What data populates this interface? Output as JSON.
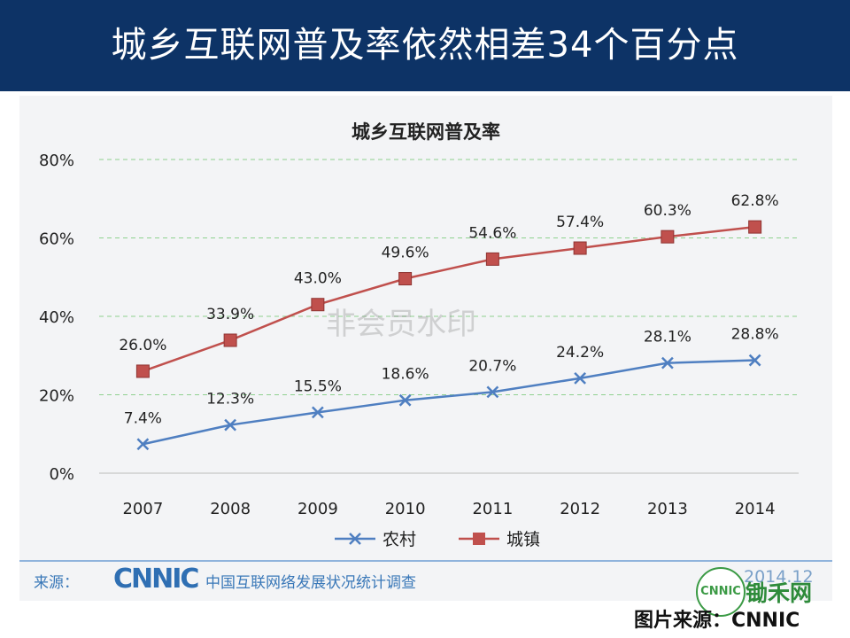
{
  "slide": {
    "title": "城乡互联网普及率依然相差34个百分点"
  },
  "chart_data": {
    "type": "line",
    "title": "城乡互联网普及率",
    "categories": [
      "2007",
      "2008",
      "2009",
      "2010",
      "2011",
      "2012",
      "2013",
      "2014"
    ],
    "series": [
      {
        "name": "农村",
        "values": [
          7.4,
          12.3,
          15.5,
          18.6,
          20.7,
          24.2,
          28.1,
          28.8
        ],
        "labels": [
          "7.4%",
          "12.3%",
          "15.5%",
          "18.6%",
          "20.7%",
          "24.2%",
          "28.1%",
          "28.8%"
        ],
        "color": "#4f7fc1",
        "marker": "x"
      },
      {
        "name": "城镇",
        "values": [
          26.0,
          33.9,
          43.0,
          49.6,
          54.6,
          57.4,
          60.3,
          62.8
        ],
        "labels": [
          "26.0%",
          "33.9%",
          "43.0%",
          "49.6%",
          "54.6%",
          "57.4%",
          "60.3%",
          "62.8%"
        ],
        "color": "#c0504d",
        "marker": "square"
      }
    ],
    "ylim": [
      0,
      80
    ],
    "yticks": [
      "0%",
      "20%",
      "40%",
      "60%",
      "80%"
    ],
    "grid": true,
    "gridColor": "#8fd18f",
    "legend": "bottom",
    "xlabel": "",
    "ylabel": ""
  },
  "source": {
    "label": "来源：",
    "logo": "CNNIC",
    "desc": "中国互联网络发展状况统计调查",
    "date": "2014.12"
  },
  "watermark": "非会员水印",
  "site": {
    "badge": "CNNIC",
    "name": "锄禾网"
  },
  "credit": "图片来源：CNNIC"
}
